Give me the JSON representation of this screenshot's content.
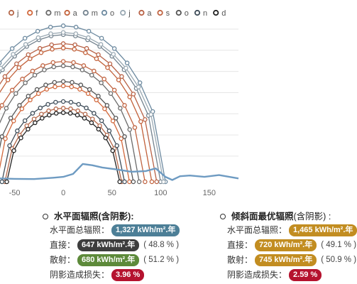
{
  "chart_data": {
    "type": "line",
    "title": "",
    "xlabel": "",
    "ylabel": "",
    "x_ticks": [
      -50,
      0,
      50,
      100,
      150
    ],
    "xlim": [
      -65,
      180
    ],
    "ylim": [
      0,
      72
    ],
    "grid": true,
    "legend_position": "top",
    "series": [
      {
        "name": "j",
        "color": "#b5684a",
        "peak": 33,
        "half_width": 60,
        "center": 0
      },
      {
        "name": "f",
        "color": "#d2693d",
        "peak": 43,
        "half_width": 68,
        "center": 0
      },
      {
        "name": "m",
        "color": "#6b6b6b",
        "peak": 52,
        "half_width": 78,
        "center": 0
      },
      {
        "name": "a",
        "color": "#c2613a",
        "peak": 60,
        "half_width": 91,
        "center": 0
      },
      {
        "name": "m",
        "color": "#74838f",
        "peak": 66,
        "half_width": 100,
        "center": 0
      },
      {
        "name": "o",
        "color": "#6d8aa0",
        "peak": 70,
        "half_width": 105,
        "center": 0
      },
      {
        "name": "j",
        "color": "#9aa9b3",
        "peak": 67,
        "half_width": 103,
        "center": 0
      },
      {
        "name": "a",
        "color": "#b86145",
        "peak": 62,
        "half_width": 96,
        "center": 0
      },
      {
        "name": "s",
        "color": "#c06442",
        "peak": 54,
        "half_width": 84,
        "center": 0
      },
      {
        "name": "o",
        "color": "#555555",
        "peak": 45,
        "half_width": 72,
        "center": 0
      },
      {
        "name": "n",
        "color": "#3f4d59",
        "peak": 36,
        "half_width": 63,
        "center": 0
      },
      {
        "name": "d",
        "color": "#222222",
        "peak": 31,
        "half_width": 58,
        "center": 0
      }
    ],
    "horizon_profile": {
      "name": "horizon",
      "color": "#6e9bc2",
      "x": [
        -65,
        -50,
        -30,
        -10,
        0,
        10,
        20,
        30,
        40,
        55,
        70,
        85,
        95,
        105,
        112,
        120,
        130,
        145,
        160,
        180
      ],
      "y": [
        1.5,
        1.3,
        1.2,
        1.8,
        2.2,
        3.5,
        8.0,
        7.4,
        6.4,
        5.5,
        4.5,
        4.8,
        6.0,
        2.2,
        0.8,
        2.5,
        2.8,
        2.2,
        3.0,
        1.5
      ]
    }
  },
  "summary": {
    "left": {
      "title": "水平面辐照",
      "title_suffix": " (含阴影):",
      "rows": [
        {
          "label": "水平面总辐照：",
          "value": "1,327 kWh/m².年",
          "color": "#4d7f97",
          "pct": ""
        },
        {
          "label": "直接：",
          "value": "647 kWh/m².年",
          "color": "#3d3d3d",
          "pct": "( 48.8 % )"
        },
        {
          "label": "散射：",
          "value": "680 kWh/m².年",
          "color": "#5d8a3a",
          "pct": "( 51.2 % )"
        },
        {
          "label": "阴影造成损失：",
          "value": "3.96 %",
          "color": "#b5132f",
          "pct": ""
        }
      ]
    },
    "right": {
      "title": "倾斜面最优辐照",
      "title_suffix": " (含阴影) :",
      "rows": [
        {
          "label": "水平面总辐照：",
          "value": "1,465 kWh/m².年",
          "color": "#c28d21",
          "pct": ""
        },
        {
          "label": "直接：",
          "value": "720 kWh/m².年",
          "color": "#c28d21",
          "pct": "( 49.1 % )"
        },
        {
          "label": "散射：",
          "value": "745 kWh/m².年",
          "color": "#c28d21",
          "pct": "( 50.9 % )"
        },
        {
          "label": "阴影造成损失：",
          "value": "2.59 %",
          "color": "#b5132f",
          "pct": ""
        }
      ]
    }
  }
}
